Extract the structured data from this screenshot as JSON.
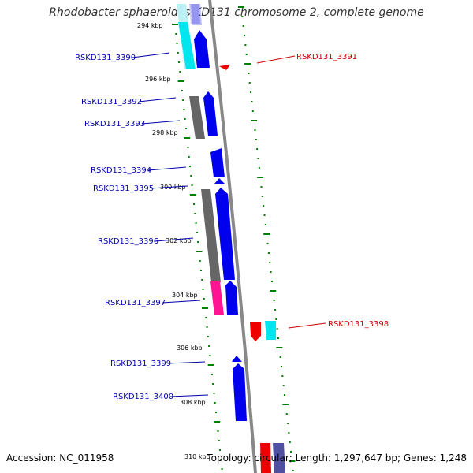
{
  "title": "Rhodobacter sphaeroides KD131 chromosome 2, complete genome",
  "accession_text": "Accession: NC_011958",
  "stats_text": "Topology: circular; Length: 1,297,647 bp; Genes: 1,248",
  "colors": {
    "forward_gene": "#0000ee",
    "reverse_gene": "#ee0000",
    "forward_label": "#0000aa",
    "reverse_label": "#cc0000",
    "tick": "#008000",
    "backbone": "#888888",
    "cog_cyan": "#00e5ee",
    "cog_gray": "#666666",
    "cog_pink": "#ff1493",
    "cog_lightcyan": "#bbf0f5",
    "cog_lavender": "#c8c8f0",
    "cog_slate": "#5050a0"
  },
  "kbp_labels": [
    "294 kbp",
    "296 kbp",
    "298 kbp",
    "300 kbp",
    "302 kbp",
    "304 kbp",
    "306 kbp",
    "308 kbp",
    "310 kbp"
  ],
  "gene_labels": [
    {
      "name": "RSKD131_3390",
      "strand": "forward"
    },
    {
      "name": "RSKD131_3391",
      "strand": "reverse"
    },
    {
      "name": "RSKD131_3392",
      "strand": "forward"
    },
    {
      "name": "RSKD131_3393",
      "strand": "forward"
    },
    {
      "name": "RSKD131_3394",
      "strand": "forward"
    },
    {
      "name": "RSKD131_3395",
      "strand": "forward"
    },
    {
      "name": "RSKD131_3396",
      "strand": "forward"
    },
    {
      "name": "RSKD131_3397",
      "strand": "forward"
    },
    {
      "name": "RSKD131_3398",
      "strand": "reverse"
    },
    {
      "name": "RSKD131_3399",
      "strand": "forward"
    },
    {
      "name": "RSKD131_3400",
      "strand": "forward"
    }
  ]
}
